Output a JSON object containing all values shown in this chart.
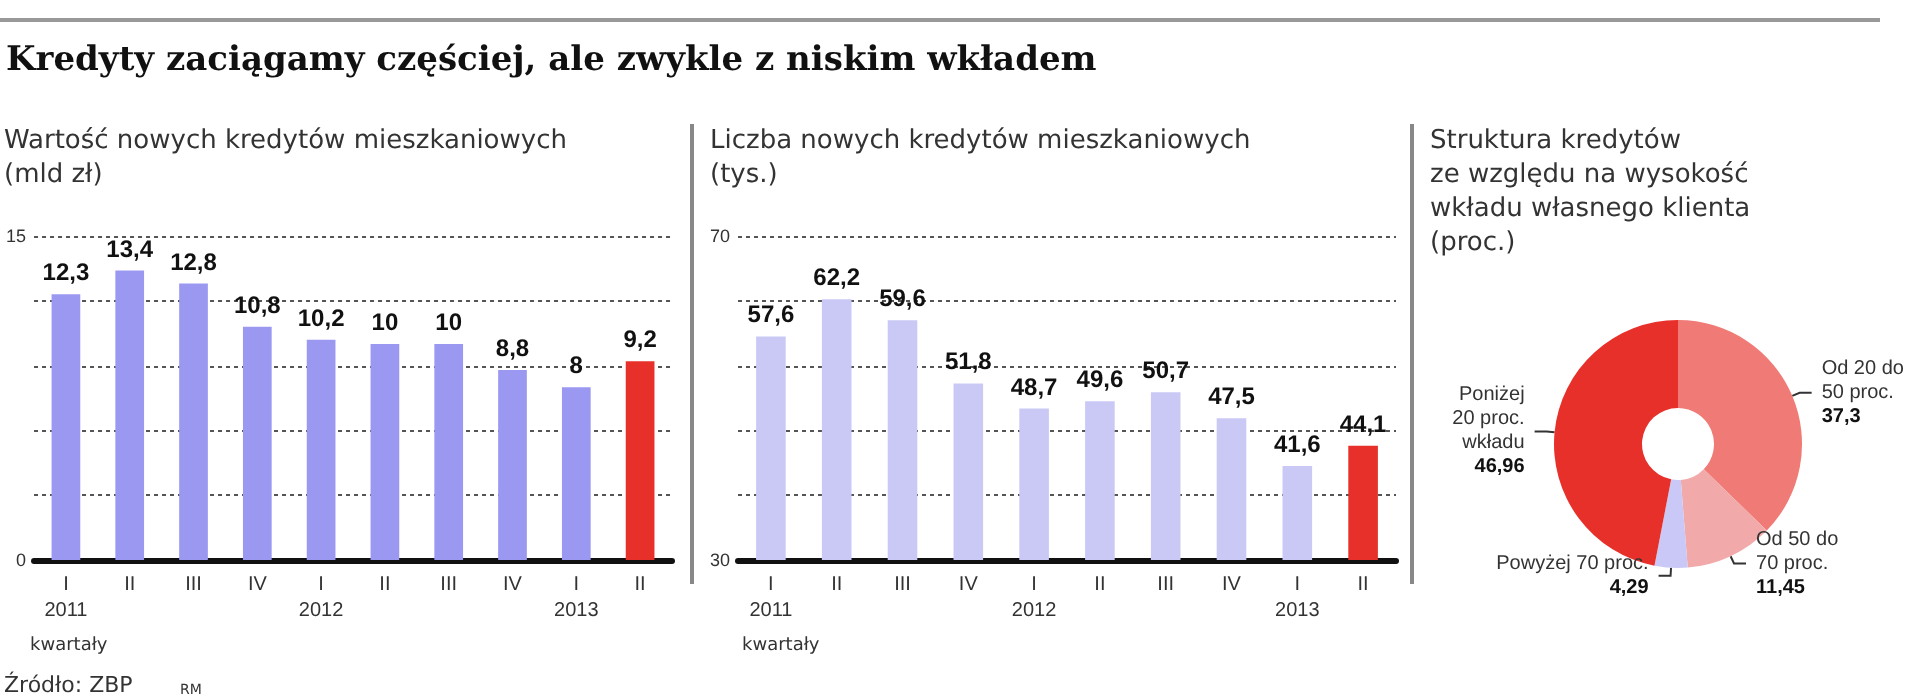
{
  "chart_data": [
    {
      "type": "bar",
      "title": "Kredyty zaciągamy częściej, ale zwykle z niskim wkładem",
      "subtitle": "Wartość nowych kredytów mieszkaniowych\n(mld zł)",
      "xlabel": "kwartały",
      "categories": [
        "I\n2011",
        "II",
        "III",
        "IV",
        "I\n2012",
        "II",
        "III",
        "IV",
        "I\n2013",
        "II"
      ],
      "values": [
        12.3,
        13.4,
        12.8,
        10.8,
        10.2,
        10,
        10,
        8.8,
        8,
        9.2
      ],
      "value_labels": [
        "12,3",
        "13,4",
        "12,8",
        "10,8",
        "10,2",
        "10",
        "10",
        "8,8",
        "8",
        "9,2"
      ],
      "colors": [
        "#9b98f2",
        "#9b98f2",
        "#9b98f2",
        "#9b98f2",
        "#9b98f2",
        "#9b98f2",
        "#9b98f2",
        "#9b98f2",
        "#9b98f2",
        "#e8302b"
      ],
      "ylim": [
        0,
        15
      ],
      "yticks": [
        0,
        {
          "value": 3,
          "label": null
        },
        {
          "value": 6,
          "label": null
        },
        {
          "value": 9,
          "label": null
        },
        {
          "value": 12,
          "label": null
        },
        15
      ],
      "grid": "y",
      "annotations": [
        "Źródło: ZBP",
        "RM"
      ]
    },
    {
      "type": "bar",
      "subtitle": "Liczba nowych kredytów mieszkaniowych\n(tys.)",
      "xlabel": "kwartały",
      "categories": [
        "I\n2011",
        "II",
        "III",
        "IV",
        "I\n2012",
        "II",
        "III",
        "IV",
        "I\n2013",
        "II"
      ],
      "values": [
        57.6,
        62.2,
        59.6,
        51.8,
        48.7,
        49.6,
        50.7,
        47.5,
        41.6,
        44.1
      ],
      "value_labels": [
        "57,6",
        "62,2",
        "59,6",
        "51,8",
        "48,7",
        "49,6",
        "50,7",
        "47,5",
        "41,6",
        "44,1"
      ],
      "colors": [
        "#cac9f6",
        "#cac9f6",
        "#cac9f6",
        "#cac9f6",
        "#cac9f6",
        "#cac9f6",
        "#cac9f6",
        "#cac9f6",
        "#cac9f6",
        "#e8302b"
      ],
      "ylim": [
        30,
        70
      ],
      "yticks": [
        30,
        {
          "value": 38,
          "label": null
        },
        {
          "value": 46,
          "label": null
        },
        {
          "value": 54,
          "label": null
        },
        {
          "value": 62,
          "label": null
        },
        70
      ],
      "grid": "y"
    },
    {
      "type": "donut",
      "subtitle": "Struktura kredytów\nze względu na wysokość\nwkładu własnego klienta\n(proc.)",
      "categories": [
        "Od 20 do\n50 proc.",
        "Od 50 do\n70 proc.",
        "Powyżej 70 proc.",
        "Poniżej\n20 proc.\nwkładu"
      ],
      "values": [
        37.3,
        11.45,
        4.29,
        46.96
      ],
      "value_labels": [
        "37,3",
        "11,45",
        "4,29",
        "46,96"
      ],
      "colors": [
        "#f07a75",
        "#f2a9a9",
        "#c9c8f6",
        "#e8302b"
      ]
    }
  ]
}
